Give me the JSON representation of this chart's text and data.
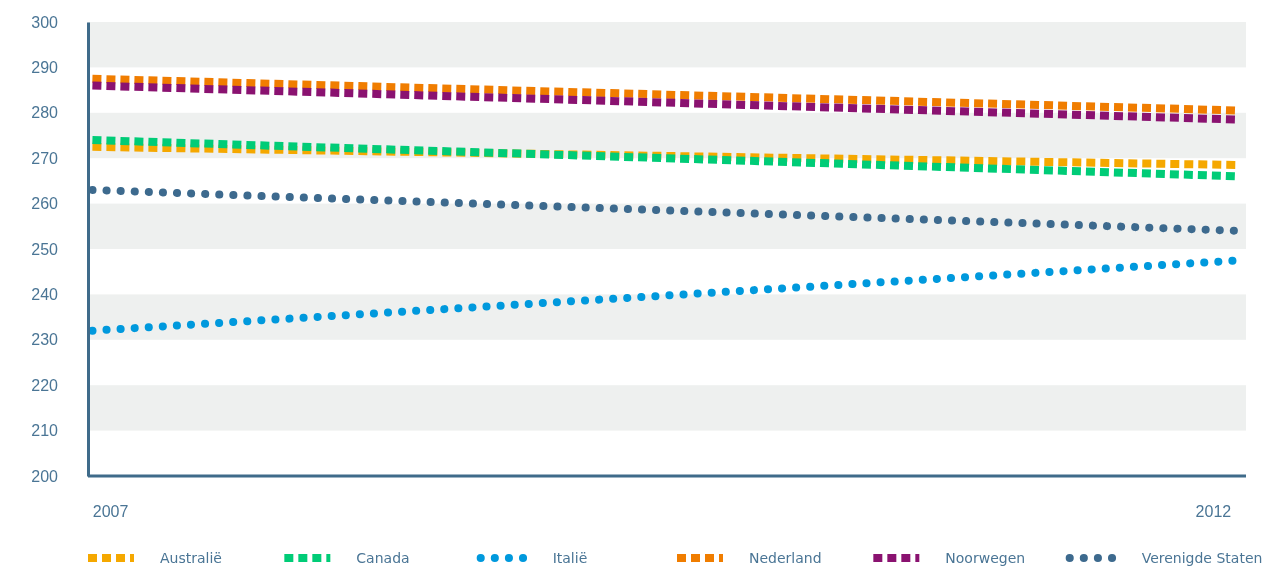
{
  "chart_data": {
    "type": "line",
    "x": [
      2006.92,
      2012.12
    ],
    "xlim": [
      2006.9,
      2012.15
    ],
    "xticks": [
      2007,
      2012
    ],
    "ylim": [
      200,
      300
    ],
    "yticks": [
      200,
      210,
      220,
      230,
      240,
      250,
      260,
      270,
      280,
      290,
      300
    ],
    "bands": [
      {
        "axis": "y",
        "from": 210,
        "to": 220,
        "color": "#eef0ef"
      },
      {
        "axis": "y",
        "from": 230,
        "to": 240,
        "color": "#eef0ef"
      },
      {
        "axis": "y",
        "from": 250,
        "to": 260,
        "color": "#eef0ef"
      },
      {
        "axis": "y",
        "from": 270,
        "to": 280,
        "color": "#eef0ef"
      },
      {
        "axis": "y",
        "from": 290,
        "to": 300,
        "color": "#eef0ef"
      }
    ],
    "legend": "bottom",
    "series": [
      {
        "name": "Australië",
        "color": "#f5a800",
        "line_style": "dashed",
        "values": [
          272.5,
          268.5
        ]
      },
      {
        "name": "Canada",
        "color": "#00cc77",
        "line_style": "dashed",
        "values": [
          274,
          266
        ]
      },
      {
        "name": "Italië",
        "color": "#0099dd",
        "line_style": "dotted",
        "values": [
          232,
          247.5
        ]
      },
      {
        "name": "Nederland",
        "color": "#f07d00",
        "line_style": "dashed",
        "values": [
          287.5,
          280.5
        ]
      },
      {
        "name": "Noorwegen",
        "color": "#8a1270",
        "line_style": "dashed",
        "values": [
          286,
          278.5
        ]
      },
      {
        "name": "Verenigde Staten",
        "color": "#3d6a8e",
        "line_style": "dotted",
        "values": [
          263,
          254
        ]
      }
    ]
  }
}
